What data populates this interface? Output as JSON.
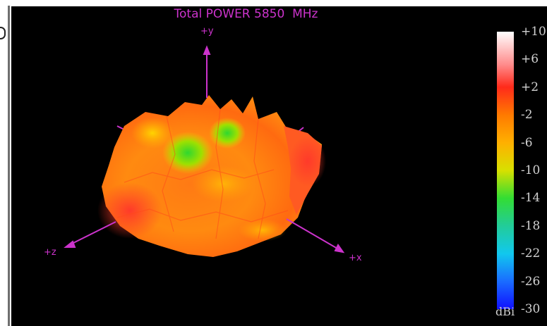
{
  "chart_data": {
    "type": "3d-radiation-pattern",
    "title": "Total POWER 5850  MHz",
    "axes": {
      "x_label": "+x",
      "y_label": "+y",
      "z_label": "+z"
    },
    "colorbar": {
      "unit": "dBi",
      "range": [
        -30,
        10
      ],
      "ticks": [
        10,
        6,
        2,
        -2,
        -6,
        -10,
        -14,
        -18,
        -22,
        -26,
        -30
      ],
      "tick_labels": [
        "+10",
        "+6",
        "+2",
        "-2",
        "-6",
        "-10",
        "-14",
        "-18",
        "-22",
        "-26",
        "-30"
      ],
      "colors": [
        "#ffffff",
        "#ff2a1a",
        "#ff8c00",
        "#ffd000",
        "#b8e600",
        "#33dd33",
        "#22ccaa",
        "#11c8ee",
        "#1a78ff",
        "#1515ff"
      ]
    },
    "pattern_gain_range_dBi": [
      -10,
      3
    ]
  },
  "colors": {
    "background": "#000000",
    "axis": "#cc33cc",
    "text": "#d0d0d0"
  }
}
